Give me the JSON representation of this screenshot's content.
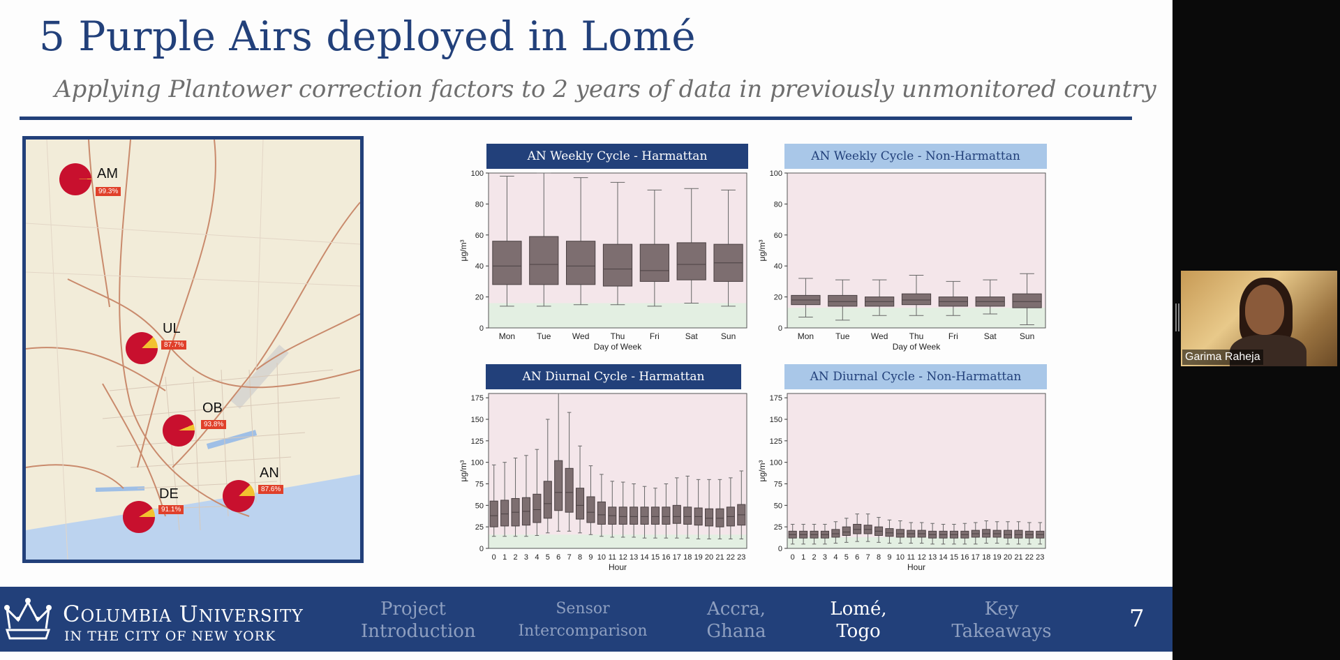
{
  "slide": {
    "title": "5 Purple Airs deployed in Lomé",
    "subtitle": "Applying Plantower correction factors to 2 years of data in previously unmonitored country",
    "page_number": "7",
    "colors": {
      "brand": "#22407a",
      "accent_light": "#a9c7e8",
      "pie_red": "#c8102e",
      "pie_yellow": "#f2c230",
      "badge": "#e0402a"
    }
  },
  "map": {
    "sites": [
      {
        "id": "AM",
        "label": "AM",
        "pct": "99.3%",
        "fraction": 0.993
      },
      {
        "id": "UL",
        "label": "UL",
        "pct": "87.7%",
        "fraction": 0.877
      },
      {
        "id": "OB",
        "label": "OB",
        "pct": "93.8%",
        "fraction": 0.938
      },
      {
        "id": "AN",
        "label": "AN",
        "pct": "87.6%",
        "fraction": 0.876
      },
      {
        "id": "DE",
        "label": "DE",
        "pct": "91.1%",
        "fraction": 0.911
      }
    ]
  },
  "chart_data": [
    {
      "type": "box",
      "title": "AN Weekly Cycle - Harmattan",
      "xlabel": "Day of Week",
      "ylabel": "μg/m³",
      "ylim": [
        0,
        100
      ],
      "yticks": [
        0,
        20,
        40,
        60,
        80,
        100
      ],
      "categories": [
        "Mon",
        "Tue",
        "Wed",
        "Thu",
        "Fri",
        "Sat",
        "Sun"
      ],
      "boxes": [
        {
          "low": 14,
          "q1": 28,
          "median": 40,
          "q3": 56,
          "high": 98
        },
        {
          "low": 14,
          "q1": 28,
          "median": 41,
          "q3": 59,
          "high": 100
        },
        {
          "low": 15,
          "q1": 28,
          "median": 40,
          "q3": 56,
          "high": 97
        },
        {
          "low": 15,
          "q1": 27,
          "median": 38,
          "q3": 54,
          "high": 94
        },
        {
          "low": 14,
          "q1": 30,
          "median": 37,
          "q3": 54,
          "high": 89
        },
        {
          "low": 16,
          "q1": 31,
          "median": 41,
          "q3": 55,
          "high": 90
        },
        {
          "low": 14,
          "q1": 30,
          "median": 42,
          "q3": 54,
          "high": 89
        }
      ],
      "green_band_to": 16
    },
    {
      "type": "box",
      "title": "AN Weekly Cycle - Non-Harmattan",
      "xlabel": "Day of Week",
      "ylabel": "μg/m³",
      "ylim": [
        0,
        100
      ],
      "yticks": [
        0,
        20,
        40,
        60,
        80,
        100
      ],
      "categories": [
        "Mon",
        "Tue",
        "Wed",
        "Thu",
        "Fri",
        "Sat",
        "Sun"
      ],
      "boxes": [
        {
          "low": 7,
          "q1": 15,
          "median": 18,
          "q3": 21,
          "high": 32
        },
        {
          "low": 5,
          "q1": 14,
          "median": 17,
          "q3": 21,
          "high": 31
        },
        {
          "low": 8,
          "q1": 14,
          "median": 17,
          "q3": 20,
          "high": 31
        },
        {
          "low": 8,
          "q1": 15,
          "median": 18,
          "q3": 22,
          "high": 34
        },
        {
          "low": 8,
          "q1": 14,
          "median": 17,
          "q3": 20,
          "high": 30
        },
        {
          "low": 9,
          "q1": 14,
          "median": 17,
          "q3": 20,
          "high": 31
        },
        {
          "low": 2,
          "q1": 13,
          "median": 17,
          "q3": 22,
          "high": 35
        }
      ],
      "green_band_to": 13
    },
    {
      "type": "box",
      "title": "AN Diurnal Cycle - Harmattan",
      "xlabel": "Hour",
      "ylabel": "μg/m³",
      "ylim": [
        0,
        180
      ],
      "yticks": [
        0,
        25,
        50,
        75,
        100,
        125,
        150,
        175
      ],
      "categories": [
        "0",
        "1",
        "2",
        "3",
        "4",
        "5",
        "6",
        "7",
        "8",
        "9",
        "10",
        "11",
        "12",
        "13",
        "14",
        "15",
        "16",
        "17",
        "18",
        "19",
        "20",
        "21",
        "22",
        "23"
      ],
      "boxes": [
        {
          "low": 14,
          "q1": 25,
          "median": 38,
          "q3": 55,
          "high": 97
        },
        {
          "low": 14,
          "q1": 26,
          "median": 40,
          "q3": 56,
          "high": 100
        },
        {
          "low": 14,
          "q1": 26,
          "median": 42,
          "q3": 58,
          "high": 105
        },
        {
          "low": 14,
          "q1": 27,
          "median": 43,
          "q3": 59,
          "high": 108
        },
        {
          "low": 15,
          "q1": 30,
          "median": 45,
          "q3": 63,
          "high": 115
        },
        {
          "low": 18,
          "q1": 35,
          "median": 52,
          "q3": 78,
          "high": 150
        },
        {
          "low": 20,
          "q1": 44,
          "median": 65,
          "q3": 102,
          "high": 180
        },
        {
          "low": 20,
          "q1": 42,
          "median": 65,
          "q3": 93,
          "high": 158
        },
        {
          "low": 18,
          "q1": 34,
          "median": 50,
          "q3": 70,
          "high": 119
        },
        {
          "low": 16,
          "q1": 30,
          "median": 42,
          "q3": 60,
          "high": 96
        },
        {
          "low": 14,
          "q1": 28,
          "median": 39,
          "q3": 54,
          "high": 86
        },
        {
          "low": 13,
          "q1": 28,
          "median": 38,
          "q3": 48,
          "high": 78
        },
        {
          "low": 13,
          "q1": 28,
          "median": 37,
          "q3": 48,
          "high": 77
        },
        {
          "low": 13,
          "q1": 28,
          "median": 37,
          "q3": 48,
          "high": 75
        },
        {
          "low": 12,
          "q1": 28,
          "median": 37,
          "q3": 48,
          "high": 72
        },
        {
          "low": 12,
          "q1": 28,
          "median": 37,
          "q3": 48,
          "high": 70
        },
        {
          "low": 12,
          "q1": 28,
          "median": 37,
          "q3": 48,
          "high": 75
        },
        {
          "low": 12,
          "q1": 29,
          "median": 37,
          "q3": 50,
          "high": 82
        },
        {
          "low": 12,
          "q1": 28,
          "median": 37,
          "q3": 48,
          "high": 84
        },
        {
          "low": 11,
          "q1": 27,
          "median": 37,
          "q3": 47,
          "high": 80
        },
        {
          "low": 11,
          "q1": 26,
          "median": 35,
          "q3": 46,
          "high": 80
        },
        {
          "low": 11,
          "q1": 25,
          "median": 35,
          "q3": 46,
          "high": 80
        },
        {
          "low": 11,
          "q1": 26,
          "median": 37,
          "q3": 48,
          "high": 82
        },
        {
          "low": 11,
          "q1": 27,
          "median": 39,
          "q3": 51,
          "high": 90
        }
      ],
      "green_band_to": 16
    },
    {
      "type": "box",
      "title": "AN Diurnal Cycle - Non-Harmattan",
      "xlabel": "Hour",
      "ylabel": "μg/m³",
      "ylim": [
        0,
        180
      ],
      "yticks": [
        0,
        25,
        50,
        75,
        100,
        125,
        150,
        175
      ],
      "categories": [
        "0",
        "1",
        "2",
        "3",
        "4",
        "5",
        "6",
        "7",
        "8",
        "9",
        "10",
        "11",
        "12",
        "13",
        "14",
        "15",
        "16",
        "17",
        "18",
        "19",
        "20",
        "21",
        "22",
        "23"
      ],
      "boxes": [
        {
          "low": 5,
          "q1": 12,
          "median": 16,
          "q3": 20,
          "high": 28
        },
        {
          "low": 5,
          "q1": 12,
          "median": 16,
          "q3": 20,
          "high": 28
        },
        {
          "low": 5,
          "q1": 12,
          "median": 16,
          "q3": 20,
          "high": 28
        },
        {
          "low": 5,
          "q1": 12,
          "median": 16,
          "q3": 20,
          "high": 28
        },
        {
          "low": 6,
          "q1": 13,
          "median": 17,
          "q3": 22,
          "high": 31
        },
        {
          "low": 7,
          "q1": 15,
          "median": 19,
          "q3": 25,
          "high": 35
        },
        {
          "low": 8,
          "q1": 17,
          "median": 22,
          "q3": 28,
          "high": 40
        },
        {
          "low": 8,
          "q1": 17,
          "median": 22,
          "q3": 27,
          "high": 40
        },
        {
          "low": 7,
          "q1": 15,
          "median": 20,
          "q3": 25,
          "high": 36
        },
        {
          "low": 6,
          "q1": 14,
          "median": 18,
          "q3": 23,
          "high": 33
        },
        {
          "low": 6,
          "q1": 13,
          "median": 17,
          "q3": 22,
          "high": 32
        },
        {
          "low": 6,
          "q1": 13,
          "median": 17,
          "q3": 21,
          "high": 30
        },
        {
          "low": 6,
          "q1": 13,
          "median": 17,
          "q3": 21,
          "high": 30
        },
        {
          "low": 5,
          "q1": 12,
          "median": 16,
          "q3": 20,
          "high": 29
        },
        {
          "low": 5,
          "q1": 12,
          "median": 16,
          "q3": 20,
          "high": 28
        },
        {
          "low": 5,
          "q1": 12,
          "median": 16,
          "q3": 20,
          "high": 28
        },
        {
          "low": 5,
          "q1": 12,
          "median": 16,
          "q3": 20,
          "high": 29
        },
        {
          "low": 5,
          "q1": 13,
          "median": 17,
          "q3": 21,
          "high": 30
        },
        {
          "low": 6,
          "q1": 13,
          "median": 17,
          "q3": 22,
          "high": 32
        },
        {
          "low": 6,
          "q1": 13,
          "median": 17,
          "q3": 21,
          "high": 31
        },
        {
          "low": 5,
          "q1": 12,
          "median": 16,
          "q3": 21,
          "high": 31
        },
        {
          "low": 5,
          "q1": 12,
          "median": 16,
          "q3": 21,
          "high": 31
        },
        {
          "low": 5,
          "q1": 12,
          "median": 16,
          "q3": 20,
          "high": 30
        },
        {
          "low": 5,
          "q1": 12,
          "median": 16,
          "q3": 20,
          "high": 30
        }
      ],
      "green_band_to": 13
    }
  ],
  "footer": {
    "university_line1": "Columbia University",
    "university_line2": "in the City of New York",
    "nav": [
      {
        "line1": "Project",
        "line2": "Introduction",
        "active": false
      },
      {
        "line1": "Sensor",
        "line2": "Intercomparison",
        "active": false
      },
      {
        "line1": "Accra,",
        "line2": "Ghana",
        "active": false
      },
      {
        "line1": "Lomé,",
        "line2": "Togo",
        "active": true
      },
      {
        "line1": "Key",
        "line2": "Takeaways",
        "active": false
      }
    ]
  },
  "video": {
    "participant_name": "Garima Raheja"
  }
}
